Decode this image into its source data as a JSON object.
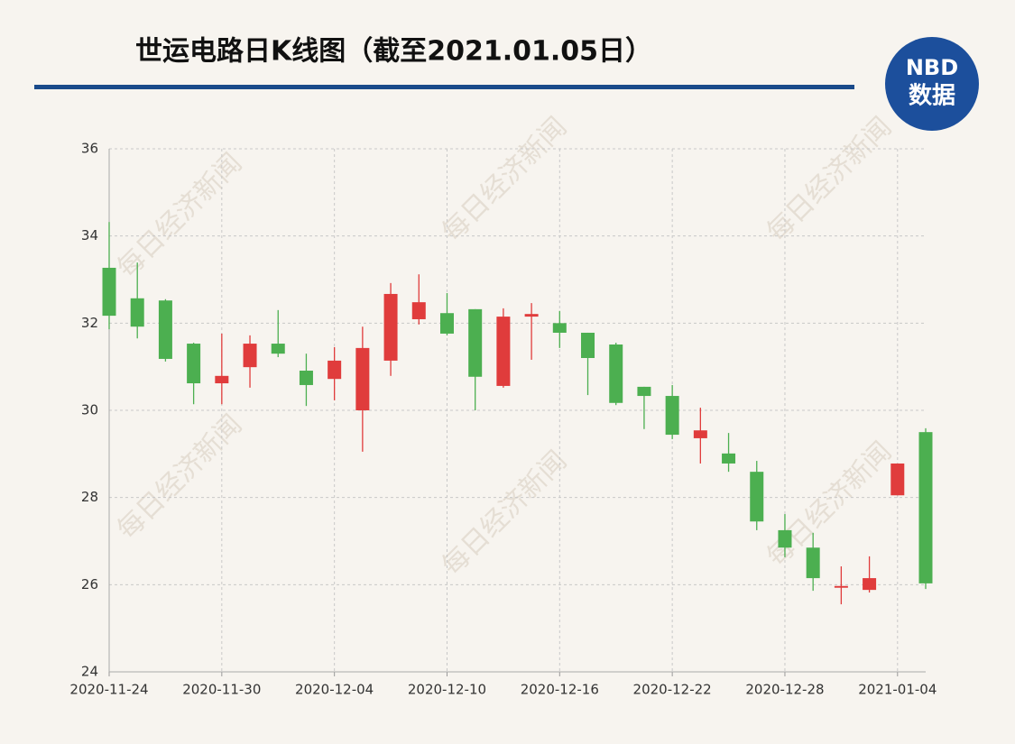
{
  "chart_data": {
    "type": "candlestick",
    "title": "世运电路日K线图（截至2021.01.05日）",
    "logo": {
      "line1": "NBD",
      "line2": "数据"
    },
    "watermark": "每日经济新闻",
    "categories": [
      "2020-11-24",
      null,
      null,
      null,
      "2020-11-30",
      null,
      null,
      null,
      "2020-12-04",
      null,
      null,
      null,
      "2020-12-10",
      null,
      null,
      null,
      "2020-12-16",
      null,
      null,
      null,
      "2020-12-22",
      null,
      null,
      null,
      "2020-12-28",
      null,
      null,
      null,
      "2021-01-04",
      null
    ],
    "open": [
      33.27,
      32.57,
      32.52,
      31.53,
      30.62,
      30.99,
      31.53,
      30.91,
      30.72,
      30.0,
      31.14,
      32.09,
      32.23,
      32.32,
      30.56,
      32.15,
      32.0,
      31.78,
      31.51,
      30.54,
      30.33,
      29.36,
      29.01,
      28.59,
      27.25,
      26.85,
      25.93,
      25.88,
      28.05,
      29.5
    ],
    "high": [
      34.32,
      33.39,
      32.55,
      31.55,
      31.76,
      31.72,
      32.3,
      31.3,
      31.45,
      31.92,
      32.92,
      33.12,
      32.69,
      32.32,
      32.34,
      32.46,
      32.28,
      31.78,
      31.55,
      30.54,
      30.58,
      30.06,
      29.48,
      28.84,
      27.62,
      27.19,
      26.42,
      26.65,
      28.78,
      29.59
    ],
    "low": [
      31.86,
      31.65,
      31.12,
      30.14,
      30.14,
      30.52,
      31.22,
      30.1,
      30.23,
      29.05,
      30.79,
      31.97,
      31.72,
      30.0,
      30.52,
      31.16,
      31.43,
      30.35,
      30.12,
      29.57,
      29.34,
      28.78,
      28.59,
      27.25,
      26.63,
      25.86,
      25.55,
      25.82,
      28.05,
      25.9
    ],
    "close": [
      32.17,
      31.92,
      31.18,
      30.62,
      30.79,
      31.53,
      31.3,
      30.58,
      31.14,
      31.43,
      32.67,
      32.48,
      31.76,
      30.77,
      32.15,
      32.21,
      31.78,
      31.2,
      30.17,
      30.33,
      29.44,
      29.54,
      28.78,
      27.45,
      26.85,
      26.15,
      25.97,
      26.15,
      28.78,
      26.03
    ],
    "up_color": "#e03c3c",
    "down_color": "#4caf50",
    "ylim": [
      24,
      36
    ],
    "yticks": [
      24,
      26,
      28,
      30,
      32,
      34,
      36
    ],
    "grid": true
  }
}
